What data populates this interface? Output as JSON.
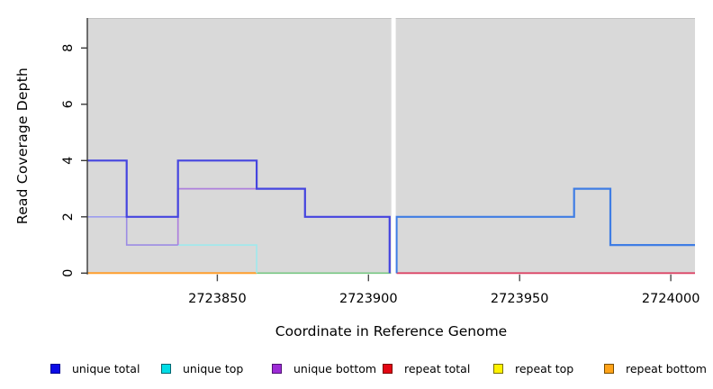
{
  "chart_data": {
    "type": "line",
    "step": true,
    "title": "",
    "xlabel": "Coordinate in Reference Genome",
    "ylabel": "Read Coverage Depth",
    "xlim": [
      2723807,
      2724008
    ],
    "ylim": [
      0,
      9
    ],
    "x_ticks": [
      "2723850",
      "2723900",
      "2723950",
      "2724000"
    ],
    "x_tick_values": [
      2723850,
      2723900,
      2723950,
      2724000
    ],
    "y_ticks": [
      "0",
      "2",
      "4",
      "6",
      "8"
    ],
    "y_tick_values": [
      0,
      2,
      4,
      6,
      8
    ],
    "plot_bg": "#d9d9d9",
    "grid": false,
    "gap": {
      "x_start": 2723907.55,
      "x_end": 2723909.0
    },
    "series": [
      {
        "name": "repeat-bottom",
        "label": "repeat bottom (depth 0)",
        "color": "#ff9e2c",
        "width": 2.0,
        "points": [
          [
            2723807,
            0
          ],
          [
            2723863,
            0
          ]
        ]
      },
      {
        "name": "unique-top-zero",
        "label": "unique top over repeat lines at 0",
        "color": "#78c882",
        "width": 1.7,
        "points": [
          [
            2723863,
            0
          ],
          [
            2723907.4,
            0
          ]
        ]
      },
      {
        "name": "unique-top",
        "label": "unique top",
        "color": "#a2e8ec",
        "width": 1.7,
        "points": [
          [
            2723837,
            1
          ],
          [
            2723863,
            1
          ],
          [
            2723863,
            0
          ]
        ]
      },
      {
        "name": "unique-top-bottom-overlap-a",
        "label": "unique top+bottom overlap at 2",
        "color": "#9c9cef",
        "width": 1.6,
        "points": [
          [
            2723807,
            2
          ],
          [
            2723820,
            2
          ]
        ]
      },
      {
        "name": "unique-top-bottom-overlap-b",
        "label": "unique top+bottom overlap at 1",
        "color": "#9c8ce4",
        "width": 1.6,
        "points": [
          [
            2723820,
            2
          ],
          [
            2723820,
            1
          ],
          [
            2723837,
            1
          ]
        ]
      },
      {
        "name": "unique-bottom",
        "label": "unique bottom",
        "color": "#ae80dc",
        "width": 1.7,
        "points": [
          [
            2723837,
            1
          ],
          [
            2723837,
            3
          ],
          [
            2723879,
            3
          ],
          [
            2723879,
            2
          ],
          [
            2723907,
            2
          ],
          [
            2723907,
            0
          ]
        ]
      },
      {
        "name": "unique-total",
        "label": "unique total",
        "color": "#4545df",
        "width": 2.2,
        "points": [
          [
            2723807,
            4
          ],
          [
            2723820,
            4
          ],
          [
            2723820,
            2
          ],
          [
            2723837,
            2
          ],
          [
            2723837,
            4
          ],
          [
            2723863,
            4
          ],
          [
            2723863,
            3
          ],
          [
            2723879,
            3
          ],
          [
            2723879,
            2
          ],
          [
            2723907,
            2
          ],
          [
            2723907,
            0
          ]
        ]
      },
      {
        "name": "repeat-total",
        "label": "repeat total (depth 0)",
        "color": "#dc4365",
        "width": 1.8,
        "points": [
          [
            2723909.3,
            0
          ],
          [
            2724008,
            0
          ]
        ]
      },
      {
        "name": "total-after-gap",
        "label": "total coverage right of gap",
        "color": "#3f7de4",
        "width": 2.2,
        "points": [
          [
            2723909.3,
            0
          ],
          [
            2723909.3,
            2
          ],
          [
            2723968,
            2
          ],
          [
            2723968,
            3
          ],
          [
            2723980,
            3
          ],
          [
            2723980,
            1
          ],
          [
            2724008,
            1
          ]
        ]
      }
    ],
    "legend": [
      {
        "label": "unique total",
        "fill": "#0b0be6",
        "border": "#000090"
      },
      {
        "label": "unique top",
        "fill": "#00dde6",
        "border": "#006670"
      },
      {
        "label": "unique bottom",
        "fill": "#9d2bd6",
        "border": "#4f1273"
      },
      {
        "label": "repeat total",
        "fill": "#e30613",
        "border": "#7a0000"
      },
      {
        "label": "repeat top",
        "fill": "#fff200",
        "border": "#7a7000"
      },
      {
        "label": "repeat bottom",
        "fill": "#ffa319",
        "border": "#7a4e00"
      }
    ],
    "legend_position": "bottom"
  }
}
